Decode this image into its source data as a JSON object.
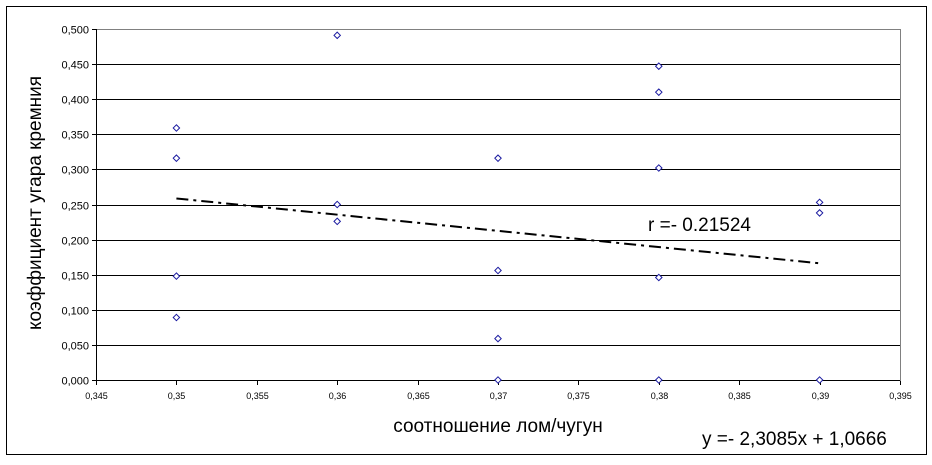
{
  "chart_data": {
    "type": "scatter",
    "xlabel": "соотношение лом/чугун",
    "ylabel": "коэффициент угара кремния",
    "xlim": [
      0.345,
      0.395
    ],
    "ylim": [
      0.0,
      0.5
    ],
    "x_ticks": [
      "0,345",
      "0,35",
      "0,355",
      "0,36",
      "0,365",
      "0,37",
      "0,375",
      "0,38",
      "0,385",
      "0,39",
      "0,395"
    ],
    "y_ticks": [
      "0,000",
      "0,050",
      "0,100",
      "0,150",
      "0,200",
      "0,250",
      "0,300",
      "0,350",
      "0,400",
      "0,450",
      "0,500"
    ],
    "grid": "horizontal",
    "legend": "none",
    "marker": "diamond",
    "marker_color": "#1a1aa0",
    "series": [
      {
        "points": [
          {
            "x": 0.35,
            "y": 0.359
          },
          {
            "x": 0.35,
            "y": 0.316
          },
          {
            "x": 0.35,
            "y": 0.148
          },
          {
            "x": 0.35,
            "y": 0.089
          },
          {
            "x": 0.36,
            "y": 0.491
          },
          {
            "x": 0.36,
            "y": 0.25
          },
          {
            "x": 0.36,
            "y": 0.226
          },
          {
            "x": 0.37,
            "y": 0.316
          },
          {
            "x": 0.37,
            "y": 0.156
          },
          {
            "x": 0.37,
            "y": 0.059
          },
          {
            "x": 0.37,
            "y": 0.0
          },
          {
            "x": 0.38,
            "y": 0.447
          },
          {
            "x": 0.38,
            "y": 0.41
          },
          {
            "x": 0.38,
            "y": 0.302
          },
          {
            "x": 0.38,
            "y": 0.146
          },
          {
            "x": 0.38,
            "y": 0.0
          },
          {
            "x": 0.39,
            "y": 0.253
          },
          {
            "x": 0.39,
            "y": 0.238
          },
          {
            "x": 0.39,
            "y": 0.0
          }
        ]
      }
    ],
    "trendline": {
      "slope": -2.3085,
      "intercept": 1.0666,
      "x_range": [
        0.35,
        0.39
      ],
      "style": "dash-dot"
    },
    "annotations": {
      "correlation": "r =- 0.21524",
      "equation": "y =- 2,3085x + 1,0666"
    }
  }
}
